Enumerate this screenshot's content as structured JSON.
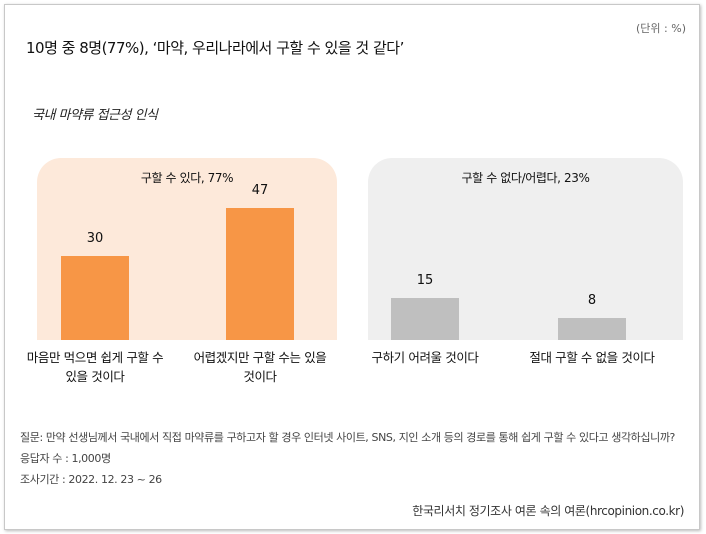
{
  "chart_data": {
    "type": "bar",
    "unit": "(단위 : %)",
    "title": "10명 중 8명(77%), ‘마약, 우리나라에서 구할 수 있을 것 같다’",
    "subtitle": "국내 마약류 접근성 인식",
    "groups": [
      {
        "label": "구할 수 있다, 77%",
        "color": "#fde9da"
      },
      {
        "label": "구할 수 없다/어렵다, 23%",
        "color": "#efefef"
      }
    ],
    "categories": [
      "마음만 먹으면 쉽게 구할 수 있을 것이다",
      "어렵겠지만 구할 수는 있을 것이다",
      "구하기 어려울 것이다",
      "절대 구할 수 없을 것이다"
    ],
    "values": [
      30,
      47,
      15,
      8
    ],
    "colors": [
      "#f79646",
      "#f79646",
      "#bfbfbf",
      "#bfbfbf"
    ],
    "notes": [
      "질문: 만약 선생님께서 국내에서 직접 마약류를 구하고자 할 경우 인터넷 사이트, SNS, 지인 소개 등의 경로를 통해 쉽게 구할 수 있다고 생각하십니까?",
      "응답자 수 : 1,000명",
      "조사기간 : 2022. 12. 23 ~ 26"
    ],
    "source": "한국리서치 정기조사 여론 속의 여론(hrcopinion.co.kr)"
  }
}
